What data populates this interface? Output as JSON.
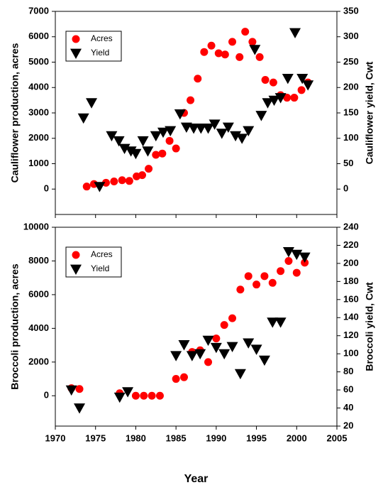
{
  "chart_data": [
    {
      "type": "scatter",
      "y_label": "Cauliflower production, acres",
      "y2_label": "Cauliflower yield, Cwt",
      "xlim": [
        1970,
        2005
      ],
      "xticks": [
        1970,
        1975,
        1980,
        1985,
        1990,
        1995,
        2000,
        2005
      ],
      "ylim": [
        -1000,
        7000
      ],
      "yticks": [
        0,
        1000,
        2000,
        3000,
        4000,
        5000,
        6000,
        7000
      ],
      "y2lim": [
        -50,
        350
      ],
      "y2ticks": [
        0,
        50,
        100,
        150,
        200,
        250,
        300,
        350
      ],
      "legend": "upper left",
      "series": [
        {
          "name": "Acres",
          "color": "#ff0000",
          "marker": "circle",
          "x": [
            1973.9,
            1974.8,
            1976.3,
            1977.3,
            1978.3,
            1979.2,
            1980.1,
            1980.8,
            1981.6,
            1982.5,
            1983.3,
            1984.2,
            1985.0,
            1986.0,
            1986.8,
            1987.7,
            1988.5,
            1989.4,
            1990.3,
            1991.1,
            1992.0,
            1992.9,
            1993.6,
            1994.5,
            1995.4,
            1996.1,
            1997.1,
            1998.0,
            1998.8,
            1999.7,
            2000.6,
            2001.4
          ],
          "values": [
            100,
            200,
            250,
            300,
            350,
            320,
            500,
            550,
            800,
            1350,
            1400,
            1900,
            1600,
            3000,
            3500,
            4350,
            5400,
            5650,
            5350,
            5300,
            5800,
            5200,
            6200,
            5800,
            5200,
            4300,
            4200,
            3700,
            3600,
            3600,
            3900,
            4200
          ]
        },
        {
          "name": "Yield",
          "color": "#000000",
          "marker": "triangle",
          "axis": "y2",
          "x": [
            1973.5,
            1974.5,
            1975.5,
            1977.0,
            1977.9,
            1978.6,
            1979.4,
            1980.0,
            1980.9,
            1981.5,
            1982.5,
            1983.4,
            1984.3,
            1985.5,
            1986.3,
            1987.2,
            1988.1,
            1989.0,
            1989.8,
            1990.7,
            1991.5,
            1992.4,
            1993.2,
            1994.0,
            1994.8,
            1995.6,
            1996.4,
            1997.2,
            1998.0,
            1998.9,
            1999.8,
            2000.7,
            2001.4
          ],
          "values": [
            140,
            170,
            5,
            105,
            95,
            80,
            75,
            70,
            95,
            75,
            105,
            112,
            115,
            148,
            122,
            120,
            120,
            120,
            128,
            110,
            122,
            105,
            100,
            115,
            275,
            145,
            170,
            175,
            180,
            218,
            308,
            218,
            205
          ]
        }
      ]
    },
    {
      "type": "scatter",
      "x_label": "Year",
      "y_label": "Broccoli production, acres",
      "y2_label": "Broccoli yield, Cwt",
      "xlim": [
        1970,
        2005
      ],
      "xticks": [
        1970,
        1975,
        1980,
        1985,
        1990,
        1995,
        2000,
        2005
      ],
      "ylim": [
        -1800,
        10000
      ],
      "yticks": [
        0,
        2000,
        4000,
        6000,
        8000,
        10000
      ],
      "y2lim": [
        20,
        240
      ],
      "y2ticks": [
        20,
        40,
        60,
        80,
        100,
        120,
        140,
        160,
        180,
        200,
        220,
        240
      ],
      "legend": "upper left",
      "series": [
        {
          "name": "Acres",
          "color": "#ff0000",
          "marker": "circle",
          "x": [
            1972,
            1973,
            1978,
            1980,
            1981,
            1982,
            1983,
            1985,
            1986,
            1987,
            1988,
            1989,
            1990,
            1991,
            1992,
            1993,
            1994,
            1995,
            1996,
            1997,
            1998,
            1999,
            2000,
            2001
          ],
          "values": [
            450,
            400,
            150,
            0,
            0,
            0,
            0,
            1000,
            1100,
            2600,
            2700,
            2000,
            3400,
            4200,
            4600,
            6300,
            7100,
            6600,
            7100,
            6700,
            7400,
            8000,
            7300,
            7900
          ]
        },
        {
          "name": "Yield",
          "color": "#000000",
          "marker": "triangle",
          "axis": "y2",
          "x": [
            1972,
            1973,
            1978,
            1979,
            1985,
            1986,
            1987,
            1988,
            1989,
            1990,
            1991,
            1992,
            1993,
            1994,
            1995,
            1996,
            1997,
            1998,
            1999,
            2000,
            2001
          ],
          "values": [
            60,
            40,
            52,
            58,
            98,
            110,
            98,
            100,
            115,
            107,
            100,
            108,
            78,
            112,
            105,
            93,
            135,
            135,
            213,
            210,
            207
          ]
        }
      ]
    }
  ]
}
